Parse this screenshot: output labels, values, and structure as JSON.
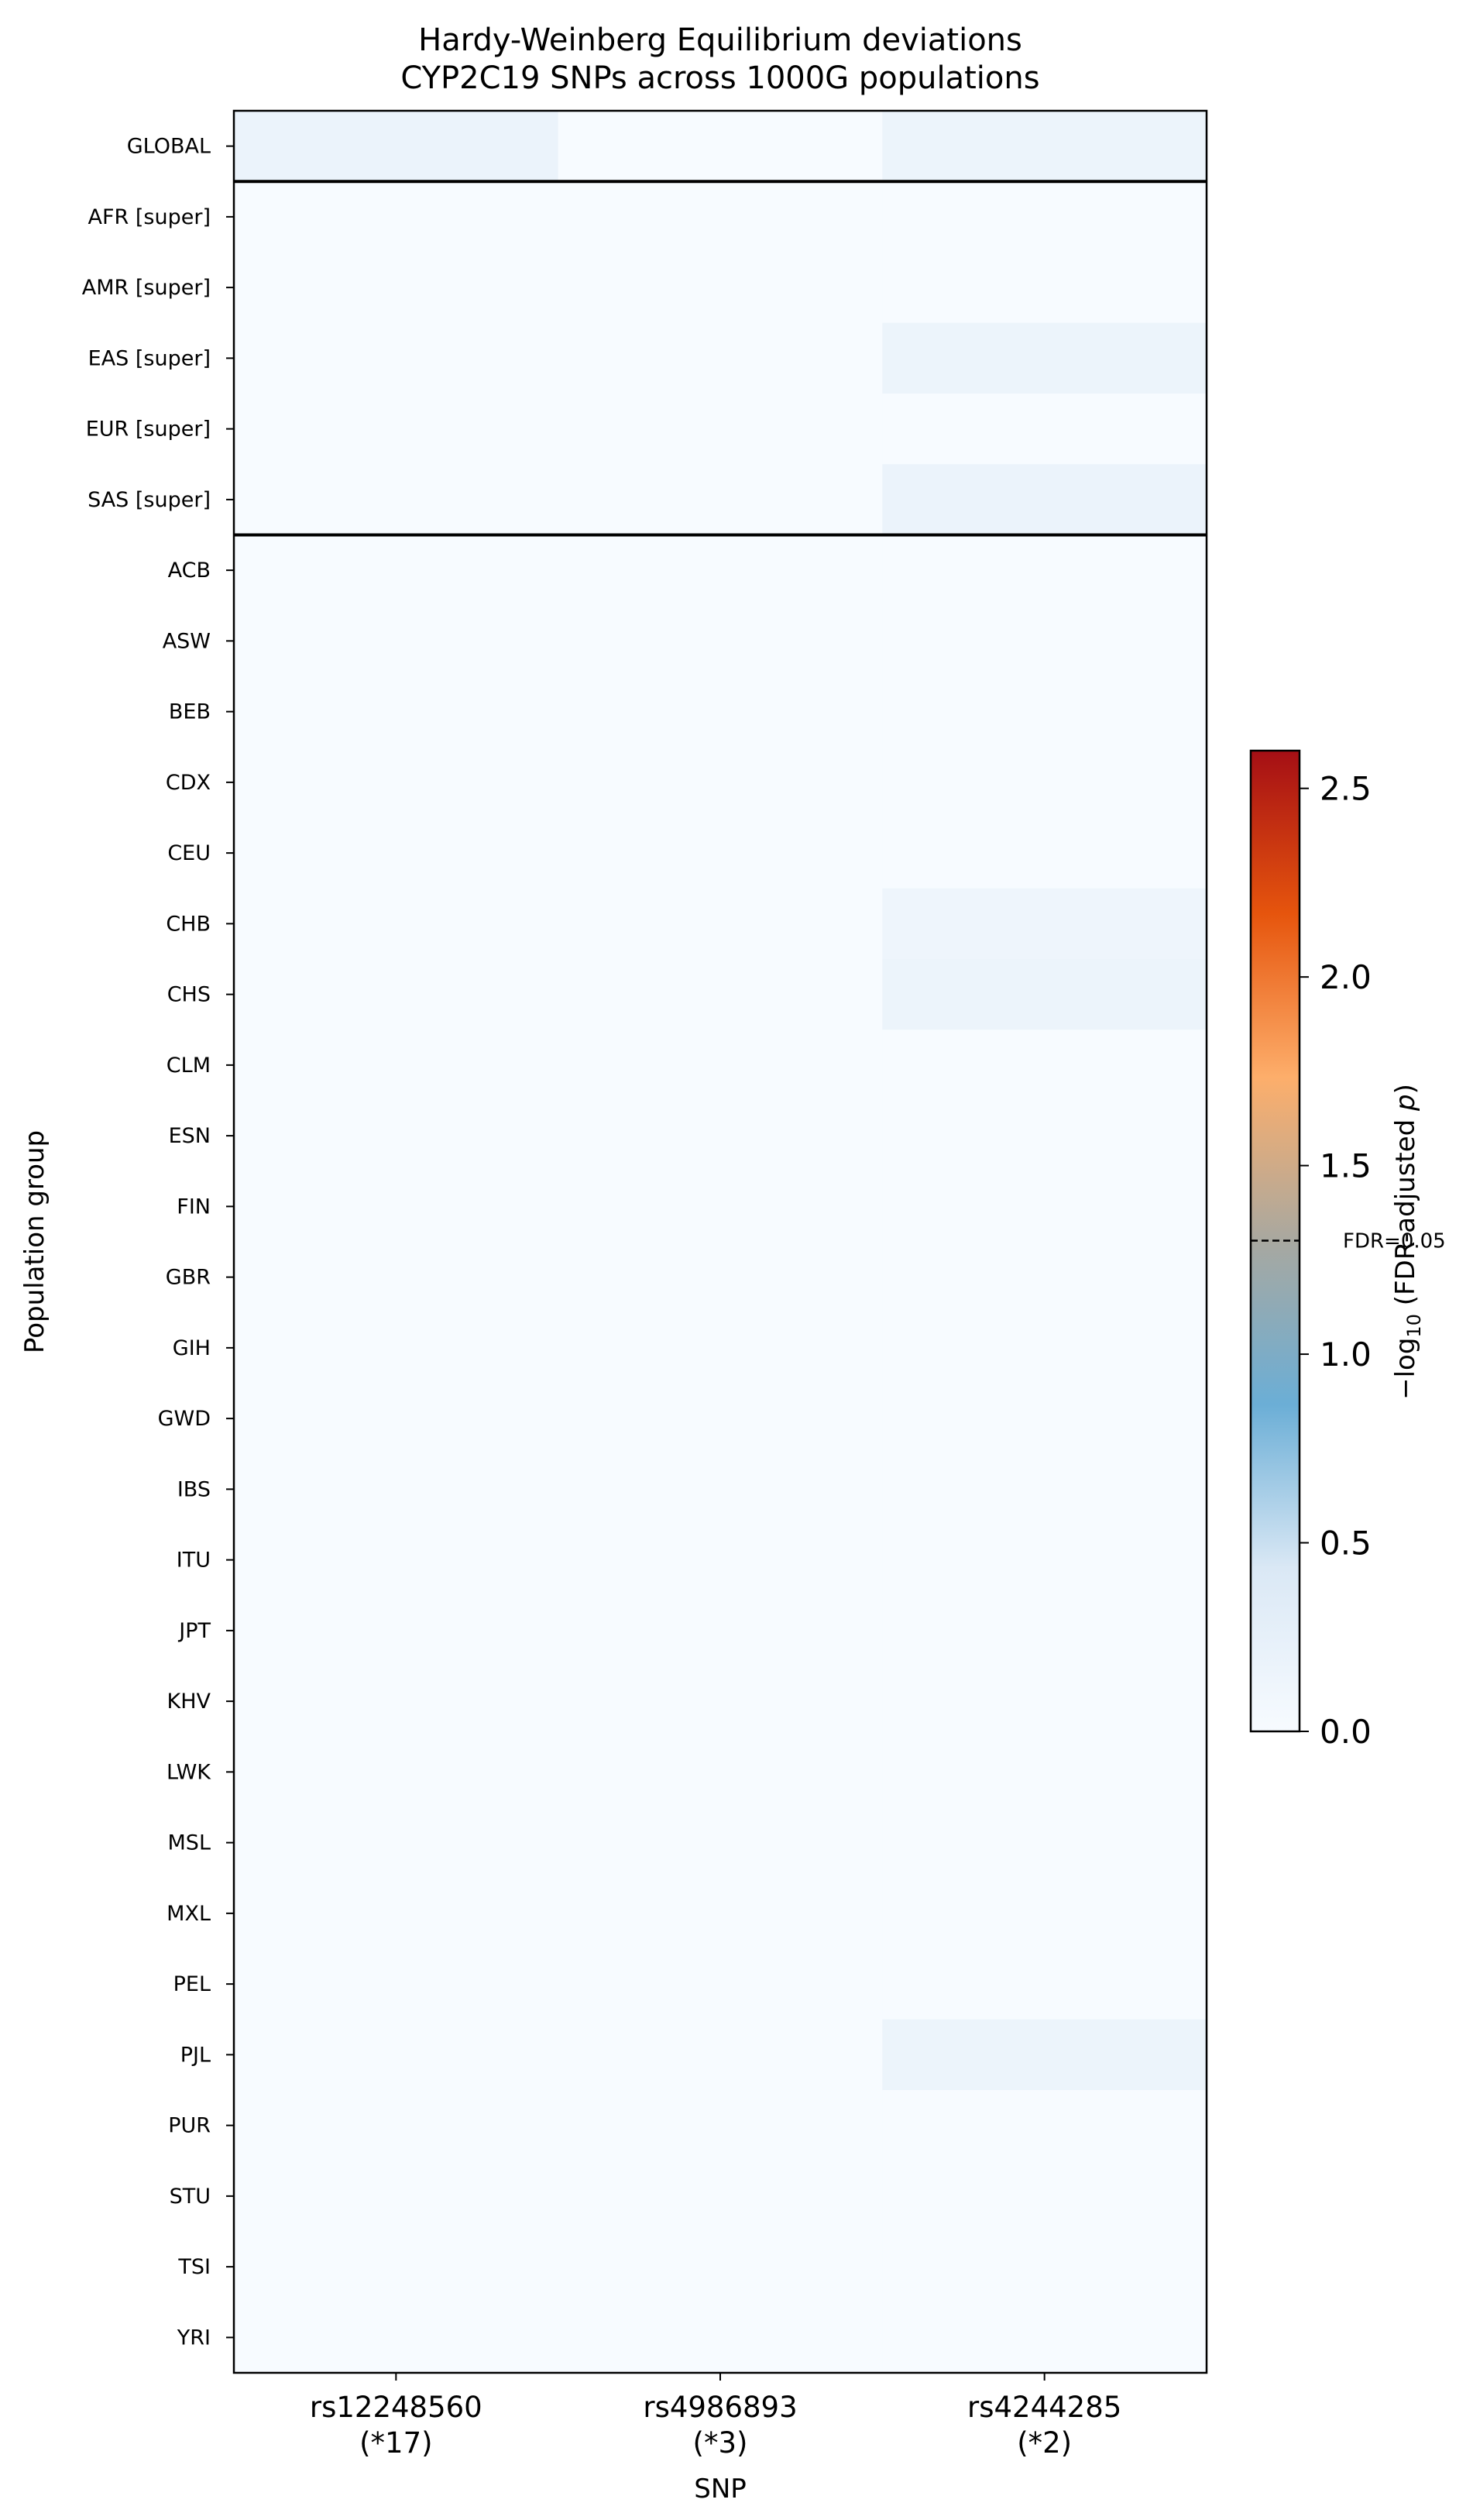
{
  "chart_data": {
    "type": "heatmap",
    "title": "Hardy-Weinberg Equilibrium deviations",
    "subtitle": "CYP2C19 SNPs across 1000G populations",
    "xlabel": "SNP",
    "ylabel": "Population group",
    "x_categories": [
      {
        "id": "rs12248560",
        "allele": "(*17)"
      },
      {
        "id": "rs4986893",
        "allele": "(*3)"
      },
      {
        "id": "rs4244285",
        "allele": "(*2)"
      }
    ],
    "y_categories": [
      "GLOBAL",
      "AFR  [super]",
      "AMR  [super]",
      "EAS  [super]",
      "EUR  [super]",
      "SAS  [super]",
      "ACB",
      "ASW",
      "BEB",
      "CDX",
      "CEU",
      "CHB",
      "CHS",
      "CLM",
      "ESN",
      "FIN",
      "GBR",
      "GIH",
      "GWD",
      "IBS",
      "ITU",
      "JPT",
      "KHV",
      "LWK",
      "MSL",
      "MXL",
      "PEL",
      "PJL",
      "PUR",
      "STU",
      "TSI",
      "YRI"
    ],
    "group_separators_after": [
      0,
      5
    ],
    "values": [
      [
        0.18,
        0.0,
        0.16
      ],
      [
        0.0,
        0.0,
        0.0
      ],
      [
        0.0,
        0.0,
        0.0
      ],
      [
        0.0,
        0.0,
        0.17
      ],
      [
        0.0,
        0.0,
        0.0
      ],
      [
        0.0,
        0.0,
        0.18
      ],
      [
        0.0,
        0.0,
        0.0
      ],
      [
        0.0,
        0.0,
        0.0
      ],
      [
        0.0,
        0.0,
        0.0
      ],
      [
        0.0,
        0.0,
        0.0
      ],
      [
        0.0,
        0.0,
        0.0
      ],
      [
        0.0,
        0.0,
        0.14
      ],
      [
        0.0,
        0.0,
        0.17
      ],
      [
        0.0,
        0.0,
        0.0
      ],
      [
        0.0,
        0.0,
        0.0
      ],
      [
        0.0,
        0.0,
        0.0
      ],
      [
        0.0,
        0.0,
        0.0
      ],
      [
        0.0,
        0.0,
        0.0
      ],
      [
        0.0,
        0.0,
        0.0
      ],
      [
        0.0,
        0.0,
        0.0
      ],
      [
        0.0,
        0.0,
        0.0
      ],
      [
        0.0,
        0.0,
        0.0
      ],
      [
        0.0,
        0.0,
        0.0
      ],
      [
        0.0,
        0.0,
        0.0
      ],
      [
        0.0,
        0.0,
        0.0
      ],
      [
        0.0,
        0.0,
        0.0
      ],
      [
        0.0,
        0.0,
        0.0
      ],
      [
        0.0,
        0.0,
        0.17
      ],
      [
        0.0,
        0.0,
        0.0
      ],
      [
        0.0,
        0.0,
        0.0
      ],
      [
        0.0,
        0.0,
        0.0
      ],
      [
        0.0,
        0.0,
        0.0
      ]
    ],
    "colorbar": {
      "label": "−log10 (FDR-adjusted p)",
      "range": [
        0,
        2.6
      ],
      "ticks": [
        "0.0",
        "0.5",
        "1.0",
        "1.5",
        "2.0",
        "2.5"
      ],
      "threshold": {
        "value": 1.30103,
        "label": "FDR=0.05"
      },
      "colors": [
        "#f7fbff",
        "#dae8f5",
        "#6baed6",
        "#a8a8a0",
        "#fdae6b",
        "#e6550d",
        "#a50f15"
      ]
    }
  }
}
